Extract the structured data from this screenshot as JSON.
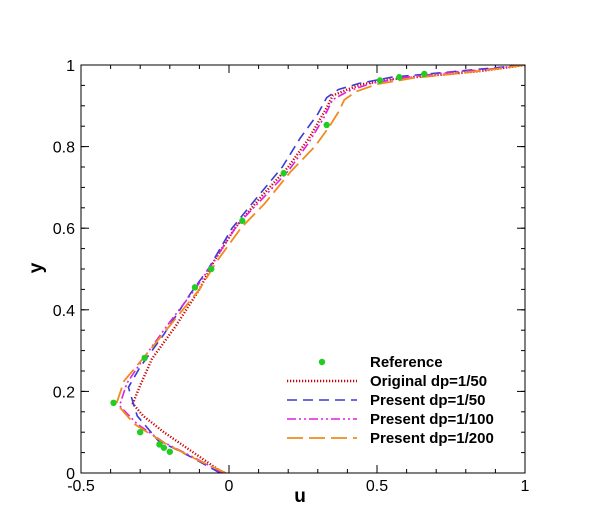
{
  "chart_data": {
    "type": "line",
    "title": "",
    "xlabel": "u",
    "ylabel": "y",
    "xlim": [
      -0.5,
      1
    ],
    "ylim": [
      0,
      1
    ],
    "x_ticks": [
      -0.5,
      0,
      0.5,
      1
    ],
    "x_tick_labels": [
      "-0.5",
      "0",
      "0.5",
      "1"
    ],
    "y_ticks": [
      0,
      0.2,
      0.4,
      0.6,
      0.8,
      1
    ],
    "y_tick_labels": [
      "0",
      "0.2",
      "0.4",
      "0.6",
      "0.8",
      "1"
    ],
    "grid": false,
    "legend_position": "bottom-right",
    "series": [
      {
        "name": "Reference",
        "style": "markers",
        "color": "#22cc22",
        "points": [
          [
            -0.2,
            0.052
          ],
          [
            -0.22,
            0.062
          ],
          [
            -0.235,
            0.07
          ],
          [
            -0.3,
            0.1
          ],
          [
            -0.39,
            0.172
          ],
          [
            -0.285,
            0.282
          ],
          [
            -0.115,
            0.455
          ],
          [
            -0.06,
            0.5
          ],
          [
            0.045,
            0.618
          ],
          [
            0.185,
            0.735
          ],
          [
            0.33,
            0.853
          ],
          [
            0.51,
            0.962
          ],
          [
            0.575,
            0.97
          ],
          [
            0.66,
            0.978
          ]
        ]
      },
      {
        "name": "Original dp=1/50",
        "style": "dotted",
        "color": "#cc0000",
        "points": [
          [
            -0.02,
            0.0
          ],
          [
            -0.12,
            0.05
          ],
          [
            -0.22,
            0.1
          ],
          [
            -0.29,
            0.14
          ],
          [
            -0.325,
            0.17
          ],
          [
            -0.3,
            0.215
          ],
          [
            -0.26,
            0.28
          ],
          [
            -0.18,
            0.36
          ],
          [
            -0.1,
            0.45
          ],
          [
            -0.05,
            0.52
          ],
          [
            0.02,
            0.6
          ],
          [
            0.1,
            0.67
          ],
          [
            0.2,
            0.75
          ],
          [
            0.27,
            0.82
          ],
          [
            0.33,
            0.895
          ],
          [
            0.35,
            0.925
          ],
          [
            0.4,
            0.94
          ],
          [
            0.45,
            0.953
          ],
          [
            0.55,
            0.965
          ],
          [
            0.7,
            0.975
          ],
          [
            0.85,
            0.985
          ],
          [
            1.0,
            1.0
          ]
        ]
      },
      {
        "name": "Present dp=1/50",
        "style": "dashed",
        "color": "#3a3ad6",
        "points": [
          [
            -0.03,
            0.0
          ],
          [
            -0.13,
            0.04
          ],
          [
            -0.24,
            0.08
          ],
          [
            -0.31,
            0.14
          ],
          [
            -0.34,
            0.21
          ],
          [
            -0.3,
            0.26
          ],
          [
            -0.22,
            0.34
          ],
          [
            -0.13,
            0.44
          ],
          [
            -0.07,
            0.5
          ],
          [
            0.01,
            0.6
          ],
          [
            0.1,
            0.68
          ],
          [
            0.18,
            0.75
          ],
          [
            0.24,
            0.82
          ],
          [
            0.3,
            0.88
          ],
          [
            0.33,
            0.92
          ],
          [
            0.37,
            0.94
          ],
          [
            0.44,
            0.955
          ],
          [
            0.55,
            0.97
          ],
          [
            0.7,
            0.98
          ],
          [
            0.85,
            0.99
          ],
          [
            1.0,
            1.0
          ]
        ]
      },
      {
        "name": "Present dp=1/100",
        "style": "dashdotdot",
        "color": "#e020e0",
        "points": [
          [
            -0.02,
            0.0
          ],
          [
            -0.11,
            0.035
          ],
          [
            -0.22,
            0.075
          ],
          [
            -0.31,
            0.12
          ],
          [
            -0.37,
            0.165
          ],
          [
            -0.345,
            0.22
          ],
          [
            -0.28,
            0.29
          ],
          [
            -0.2,
            0.37
          ],
          [
            -0.11,
            0.455
          ],
          [
            -0.05,
            0.52
          ],
          [
            0.03,
            0.61
          ],
          [
            0.11,
            0.67
          ],
          [
            0.2,
            0.74
          ],
          [
            0.27,
            0.81
          ],
          [
            0.32,
            0.87
          ],
          [
            0.35,
            0.915
          ],
          [
            0.4,
            0.935
          ],
          [
            0.48,
            0.955
          ],
          [
            0.6,
            0.97
          ],
          [
            0.75,
            0.982
          ],
          [
            0.88,
            0.99
          ],
          [
            1.0,
            1.0
          ]
        ]
      },
      {
        "name": "Present dp=1/200",
        "style": "longdash",
        "color": "#f08c1e",
        "points": [
          [
            -0.01,
            0.0
          ],
          [
            -0.1,
            0.03
          ],
          [
            -0.21,
            0.07
          ],
          [
            -0.32,
            0.12
          ],
          [
            -0.38,
            0.17
          ],
          [
            -0.355,
            0.225
          ],
          [
            -0.28,
            0.29
          ],
          [
            -0.19,
            0.37
          ],
          [
            -0.1,
            0.45
          ],
          [
            -0.04,
            0.52
          ],
          [
            0.04,
            0.6
          ],
          [
            0.12,
            0.66
          ],
          [
            0.21,
            0.74
          ],
          [
            0.29,
            0.8
          ],
          [
            0.34,
            0.85
          ],
          [
            0.37,
            0.885
          ],
          [
            0.39,
            0.915
          ],
          [
            0.43,
            0.935
          ],
          [
            0.5,
            0.953
          ],
          [
            0.62,
            0.968
          ],
          [
            0.78,
            0.98
          ],
          [
            0.9,
            0.99
          ],
          [
            1.0,
            1.0
          ]
        ]
      }
    ]
  }
}
